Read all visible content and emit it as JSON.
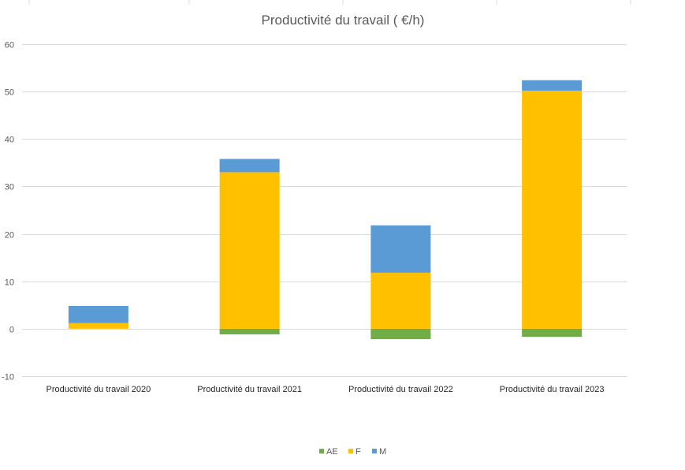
{
  "chart_data": {
    "type": "bar",
    "stacked": true,
    "title": "Productivité du travail ( €/h)",
    "xlabel": "",
    "ylabel": "",
    "ylim": [
      -10,
      60
    ],
    "yticks": [
      -10,
      0,
      10,
      20,
      30,
      40,
      50,
      60
    ],
    "grid": true,
    "legend_position": "bottom",
    "categories": [
      "Productivité du travail 2020",
      "Productivité du travail 2021",
      "Productivité du travail 2022",
      "Productivité du travail 2023"
    ],
    "series": [
      {
        "name": "AE",
        "color": "#70ad47",
        "values": [
          0,
          -1.2,
          -2.2,
          -1.7
        ]
      },
      {
        "name": "F",
        "color": "#ffc000",
        "values": [
          1.2,
          33,
          11.8,
          50.2
        ]
      },
      {
        "name": "M",
        "color": "#5b9bd5",
        "values": [
          3.6,
          2.8,
          10,
          2.2
        ]
      }
    ]
  }
}
